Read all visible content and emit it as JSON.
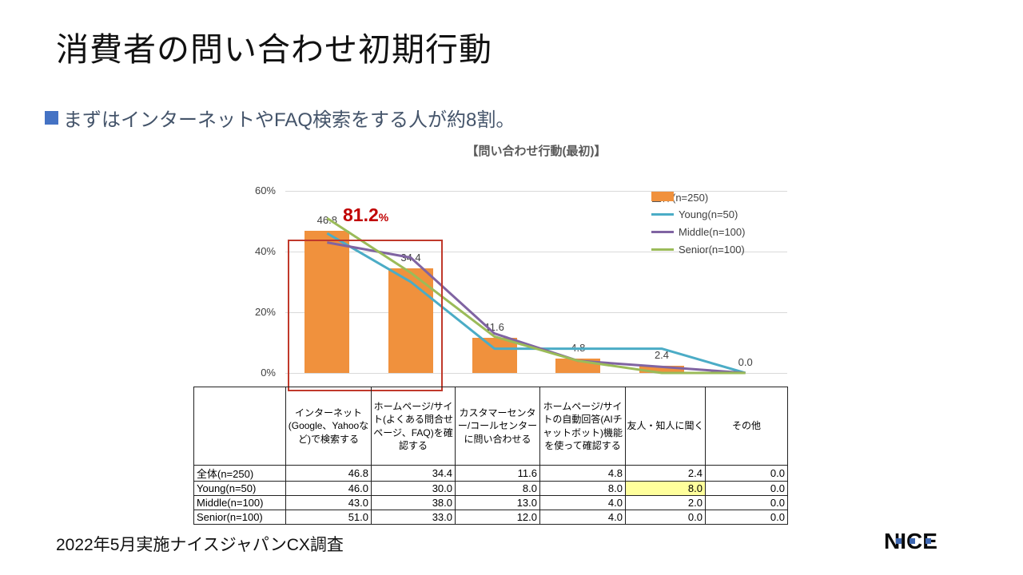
{
  "slide": {
    "title": "消費者の問い合わせ初期行動",
    "subtitle": "まずはインターネットやFAQ検索をする人が約8割。",
    "footer": "2022年5月実施ナイスジャパンCX調査",
    "logo_text": "NICE"
  },
  "chart_data": {
    "type": "bar",
    "title": "【問い合わせ行動(最初)】",
    "categories": [
      "インターネット(Google、Yahooなど)で検索する",
      "ホームページ/サイト(よくある問合せページ、FAQ)を確認する",
      "カスタマーセンター/コールセンターに問い合わせる",
      "ホームページ/サイトの自動回答(AIチャットボット)機能を使って確認する",
      "友人・知人に聞く",
      "その他"
    ],
    "series": [
      {
        "name": "全体(n=250)",
        "type": "bar",
        "color": "#F0913D",
        "values": [
          46.8,
          34.4,
          11.6,
          4.8,
          2.4,
          0.0
        ]
      },
      {
        "name": "Young(n=50)",
        "type": "line",
        "color": "#4BACC6",
        "values": [
          46.0,
          30.0,
          8.0,
          8.0,
          8.0,
          0.0
        ]
      },
      {
        "name": "Middle(n=100)",
        "type": "line",
        "color": "#8064A2",
        "values": [
          43.0,
          38.0,
          13.0,
          4.0,
          2.0,
          0.0
        ]
      },
      {
        "name": "Senior(n=100)",
        "type": "line",
        "color": "#9BBB59",
        "values": [
          51.0,
          33.0,
          12.0,
          4.0,
          0.0,
          0.0
        ]
      }
    ],
    "y_ticks": [
      {
        "label": "0%",
        "value": 0
      },
      {
        "label": "20%",
        "value": 20
      },
      {
        "label": "40%",
        "value": 40
      },
      {
        "label": "60%",
        "value": 60
      }
    ],
    "ylim": [
      0,
      60
    ],
    "grid": true,
    "legend_position": "top-right",
    "annotation": {
      "text": "81.2",
      "unit": "%",
      "color": "#C00000"
    },
    "highlight_box": {
      "from_category": 0,
      "to_category": 1,
      "color": "#C0392B"
    }
  },
  "table": {
    "corner_label": "",
    "columns": [
      "インターネット(Google、Yahooなど)で検索する",
      "ホームページ/サイト(よくある問合せページ、FAQ)を確認する",
      "カスタマーセンター/コールセンターに問い合わせる",
      "ホームページ/サイトの自動回答(AIチャットボット)機能を使って確認する",
      "友人・知人に聞く",
      "その他"
    ],
    "rows": [
      {
        "label": "全体(n=250)",
        "values": [
          "46.8",
          "34.4",
          "11.6",
          "4.8",
          "2.4",
          "0.0"
        ]
      },
      {
        "label": "Young(n=50)",
        "values": [
          "46.0",
          "30.0",
          "8.0",
          "8.0",
          "8.0",
          "0.0"
        ]
      },
      {
        "label": "Middle(n=100)",
        "values": [
          "43.0",
          "38.0",
          "13.0",
          "4.0",
          "2.0",
          "0.0"
        ]
      },
      {
        "label": "Senior(n=100)",
        "values": [
          "51.0",
          "33.0",
          "12.0",
          "4.0",
          "0.0",
          "0.0"
        ]
      }
    ],
    "highlight_cell": {
      "row": 1,
      "col": 4,
      "color": "#FFFF9C"
    }
  }
}
